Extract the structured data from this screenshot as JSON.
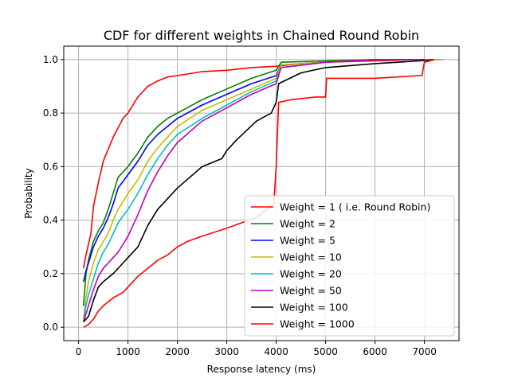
{
  "chart_data": {
    "type": "line",
    "title": "CDF for different weights in Chained Round Robin",
    "xlabel": "Response latency (ms)",
    "ylabel": "Probability",
    "xlim": [
      -300,
      7700
    ],
    "ylim": [
      -0.05,
      1.05
    ],
    "xticks": [
      0,
      1000,
      2000,
      3000,
      4000,
      5000,
      6000,
      7000
    ],
    "xtick_labels": [
      "0",
      "1000",
      "2000",
      "3000",
      "4000",
      "5000",
      "6000",
      "7000"
    ],
    "yticks": [
      0.0,
      0.2,
      0.4,
      0.6,
      0.8,
      1.0
    ],
    "ytick_labels": [
      "0.0",
      "0.2",
      "0.4",
      "0.6",
      "0.8",
      "1.0"
    ],
    "grid": true,
    "legend_position": "lower-right",
    "series": [
      {
        "name": "Weight = 1 ( i.e. Round Robin)",
        "color": "#ff0000",
        "x": [
          100,
          150,
          200,
          250,
          300,
          400,
          500,
          700,
          900,
          1000,
          1200,
          1400,
          1600,
          1800,
          2000,
          2500,
          3000,
          3500,
          4000,
          4500,
          5000,
          6000,
          7000,
          7100
        ],
        "y": [
          0.22,
          0.27,
          0.31,
          0.35,
          0.45,
          0.54,
          0.62,
          0.71,
          0.78,
          0.8,
          0.86,
          0.9,
          0.92,
          0.935,
          0.94,
          0.955,
          0.96,
          0.97,
          0.975,
          0.985,
          0.99,
          0.995,
          1.0,
          1.0
        ]
      },
      {
        "name": "Weight = 2",
        "color": "#008000",
        "x": [
          100,
          150,
          200,
          300,
          400,
          500,
          600,
          700,
          800,
          1000,
          1200,
          1400,
          1600,
          1800,
          2000,
          2500,
          3000,
          3500,
          4000,
          4100,
          5000,
          6000,
          7000,
          7300
        ],
        "y": [
          0.08,
          0.2,
          0.25,
          0.32,
          0.36,
          0.39,
          0.44,
          0.5,
          0.56,
          0.6,
          0.65,
          0.71,
          0.75,
          0.78,
          0.8,
          0.85,
          0.89,
          0.93,
          0.96,
          0.99,
          0.995,
          1.0,
          1.0,
          1.0
        ]
      },
      {
        "name": "Weight = 5",
        "color": "#0000ff",
        "x": [
          100,
          150,
          200,
          300,
          400,
          500,
          600,
          700,
          800,
          1000,
          1200,
          1400,
          1600,
          1800,
          2000,
          2500,
          3000,
          3500,
          4000,
          4100,
          5000,
          6000,
          7000,
          7300
        ],
        "y": [
          0.17,
          0.21,
          0.24,
          0.3,
          0.34,
          0.37,
          0.41,
          0.46,
          0.52,
          0.57,
          0.62,
          0.68,
          0.72,
          0.75,
          0.78,
          0.83,
          0.87,
          0.91,
          0.94,
          0.98,
          0.99,
          1.0,
          1.0,
          1.0
        ]
      },
      {
        "name": "Weight = 10",
        "color": "#bfbf00",
        "x": [
          100,
          150,
          200,
          300,
          400,
          500,
          600,
          700,
          800,
          1000,
          1200,
          1400,
          1600,
          1800,
          2000,
          2500,
          3000,
          3500,
          4000,
          4100,
          5000,
          6000,
          7000,
          7400
        ],
        "y": [
          0.03,
          0.11,
          0.17,
          0.24,
          0.29,
          0.32,
          0.35,
          0.4,
          0.44,
          0.5,
          0.55,
          0.62,
          0.67,
          0.71,
          0.75,
          0.81,
          0.85,
          0.89,
          0.93,
          0.98,
          0.99,
          1.0,
          1.0,
          1.0
        ]
      },
      {
        "name": "Weight = 20",
        "color": "#00bfbf",
        "x": [
          100,
          150,
          200,
          300,
          400,
          500,
          600,
          700,
          800,
          1000,
          1200,
          1400,
          1600,
          1800,
          2000,
          2500,
          3000,
          3500,
          4000,
          4100,
          5000,
          6000,
          7000
        ],
        "y": [
          0.02,
          0.08,
          0.12,
          0.18,
          0.24,
          0.28,
          0.31,
          0.35,
          0.39,
          0.44,
          0.5,
          0.57,
          0.63,
          0.68,
          0.72,
          0.78,
          0.83,
          0.88,
          0.92,
          0.97,
          0.99,
          1.0,
          1.0
        ]
      },
      {
        "name": "Weight = 50",
        "color": "#bf00bf",
        "x": [
          100,
          150,
          200,
          300,
          400,
          500,
          600,
          700,
          800,
          1000,
          1200,
          1400,
          1600,
          1800,
          2000,
          2500,
          3000,
          3500,
          4000,
          4100,
          5000,
          6000,
          7000
        ],
        "y": [
          0.02,
          0.05,
          0.08,
          0.14,
          0.19,
          0.22,
          0.24,
          0.26,
          0.28,
          0.34,
          0.42,
          0.51,
          0.58,
          0.64,
          0.69,
          0.77,
          0.82,
          0.87,
          0.91,
          0.97,
          0.99,
          1.0,
          1.0
        ]
      },
      {
        "name": "Weight = 100",
        "color": "#000000",
        "x": [
          100,
          150,
          200,
          300,
          400,
          500,
          700,
          900,
          1000,
          1200,
          1400,
          1600,
          1800,
          2000,
          2500,
          2900,
          3000,
          3200,
          3600,
          3900,
          4000,
          4050,
          4500,
          5000,
          6000,
          6900,
          7200
        ],
        "y": [
          0.02,
          0.03,
          0.04,
          0.1,
          0.15,
          0.17,
          0.2,
          0.24,
          0.26,
          0.3,
          0.38,
          0.44,
          0.48,
          0.52,
          0.6,
          0.63,
          0.66,
          0.7,
          0.77,
          0.8,
          0.84,
          0.91,
          0.95,
          0.97,
          0.985,
          0.995,
          1.0
        ]
      },
      {
        "name": "Weight = 1000",
        "color": "#ff0000",
        "x": [
          100,
          200,
          300,
          400,
          500,
          700,
          900,
          1000,
          1200,
          1400,
          1600,
          1800,
          2000,
          2200,
          2500,
          3000,
          3300,
          3600,
          3800,
          3950,
          4000,
          4050,
          4300,
          4800,
          5000,
          5020,
          5500,
          6000,
          6900,
          6950,
          7000,
          7200
        ],
        "y": [
          0.0,
          0.01,
          0.03,
          0.06,
          0.08,
          0.11,
          0.13,
          0.15,
          0.19,
          0.22,
          0.25,
          0.27,
          0.3,
          0.32,
          0.34,
          0.37,
          0.39,
          0.41,
          0.44,
          0.46,
          0.6,
          0.84,
          0.85,
          0.86,
          0.86,
          0.93,
          0.93,
          0.93,
          0.94,
          0.94,
          0.99,
          1.0
        ]
      }
    ]
  }
}
